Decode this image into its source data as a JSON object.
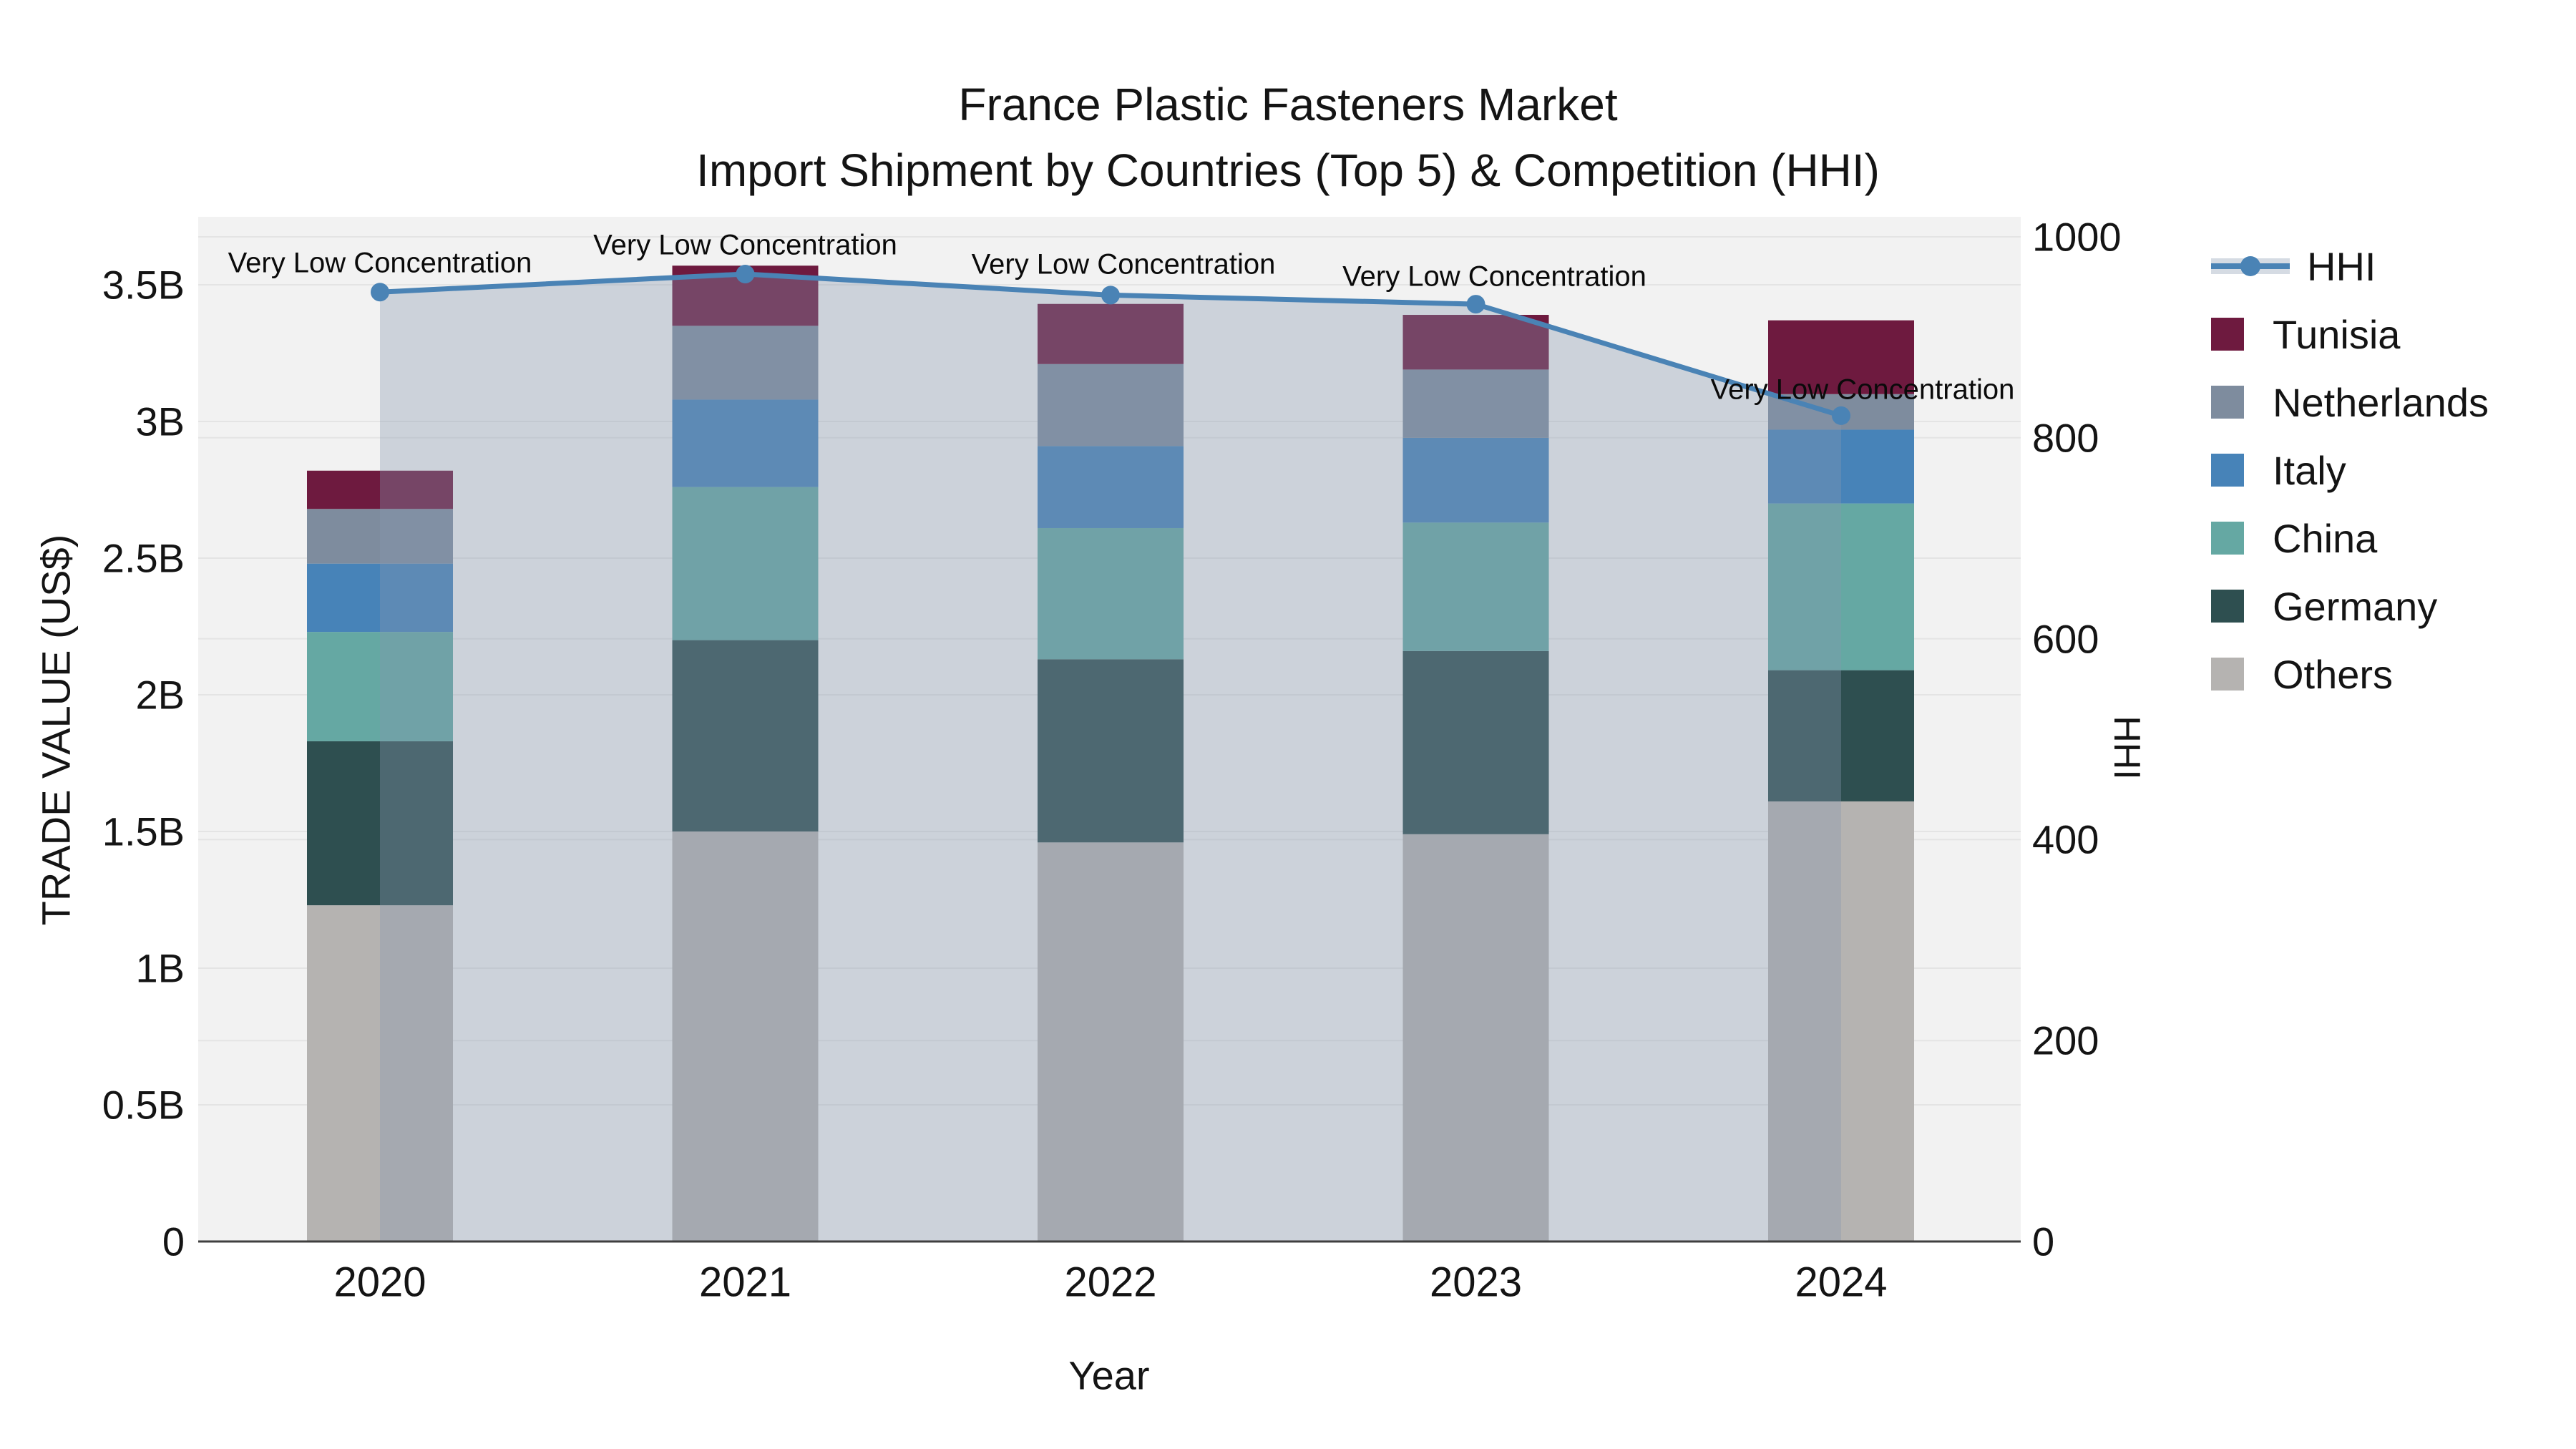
{
  "title": {
    "line1": "France Plastic Fasteners Market",
    "line2": "Import Shipment by Countries (Top 5) & Competition (HHI)"
  },
  "chart_data": {
    "type": "bar",
    "subtype": "stacked-bars-with-line-on-secondary-axis",
    "categories": [
      "2020",
      "2021",
      "2022",
      "2023",
      "2024"
    ],
    "series": [
      {
        "name": "Tunisia",
        "color": "#6E1A3F",
        "values": [
          0.14,
          0.22,
          0.22,
          0.2,
          0.27
        ]
      },
      {
        "name": "Netherlands",
        "color": "#7E8C9E",
        "values": [
          0.2,
          0.27,
          0.3,
          0.25,
          0.13
        ]
      },
      {
        "name": "Italy",
        "color": "#4783B8",
        "values": [
          0.25,
          0.32,
          0.3,
          0.31,
          0.27
        ]
      },
      {
        "name": "China",
        "color": "#65A8A3",
        "values": [
          0.4,
          0.56,
          0.48,
          0.47,
          0.61
        ]
      },
      {
        "name": "Germany",
        "color": "#2E4F50",
        "values": [
          0.6,
          0.7,
          0.67,
          0.67,
          0.48
        ]
      },
      {
        "name": "Others",
        "color": "#B5B3B1",
        "values": [
          1.23,
          1.5,
          1.46,
          1.49,
          1.61
        ]
      }
    ],
    "stack_order_bottom_to_top": [
      "Others",
      "Germany",
      "China",
      "Italy",
      "Netherlands",
      "Tunisia"
    ],
    "bar_totals_billions": [
      2.82,
      3.57,
      3.43,
      3.39,
      3.37
    ],
    "line_series": {
      "name": "HHI",
      "axis": "right",
      "color": "#4A83B5",
      "area_fill_color": "rgba(136,152,176,0.35)",
      "values": [
        945,
        963,
        942,
        933,
        822
      ]
    },
    "annotations": [
      {
        "text": "Very Low Concentration",
        "category": "2020"
      },
      {
        "text": "Very Low Concentration",
        "category": "2021"
      },
      {
        "text": "Very Low Concentration",
        "category": "2022"
      },
      {
        "text": "Very Low Concentration",
        "category": "2023"
      },
      {
        "text": "Very Low Concentration",
        "category": "2024"
      }
    ],
    "xlabel": "Year",
    "ylabel_left": "TRADE VALUE (US$)",
    "ylabel_right": "HHI",
    "y_left_axis": {
      "tick_labels": [
        "0",
        "0.5B",
        "1B",
        "1.5B",
        "2B",
        "2.5B",
        "3B",
        "3.5B"
      ],
      "tick_values": [
        0,
        0.5,
        1,
        1.5,
        2,
        2.5,
        3,
        3.5
      ],
      "unit": "billion US$"
    },
    "y_right_axis": {
      "tick_labels": [
        "0",
        "200",
        "400",
        "600",
        "800",
        "1000"
      ],
      "tick_values": [
        0,
        200,
        400,
        600,
        800,
        1000
      ]
    },
    "legend_position": "right",
    "legend_entries": [
      "HHI",
      "Tunisia",
      "Netherlands",
      "Italy",
      "China",
      "Germany",
      "Others"
    ],
    "grid": true,
    "plot_background": "#F2F2F2",
    "grid_color": "#E4E4E4",
    "axis_line_color": "#3F3F3F"
  }
}
